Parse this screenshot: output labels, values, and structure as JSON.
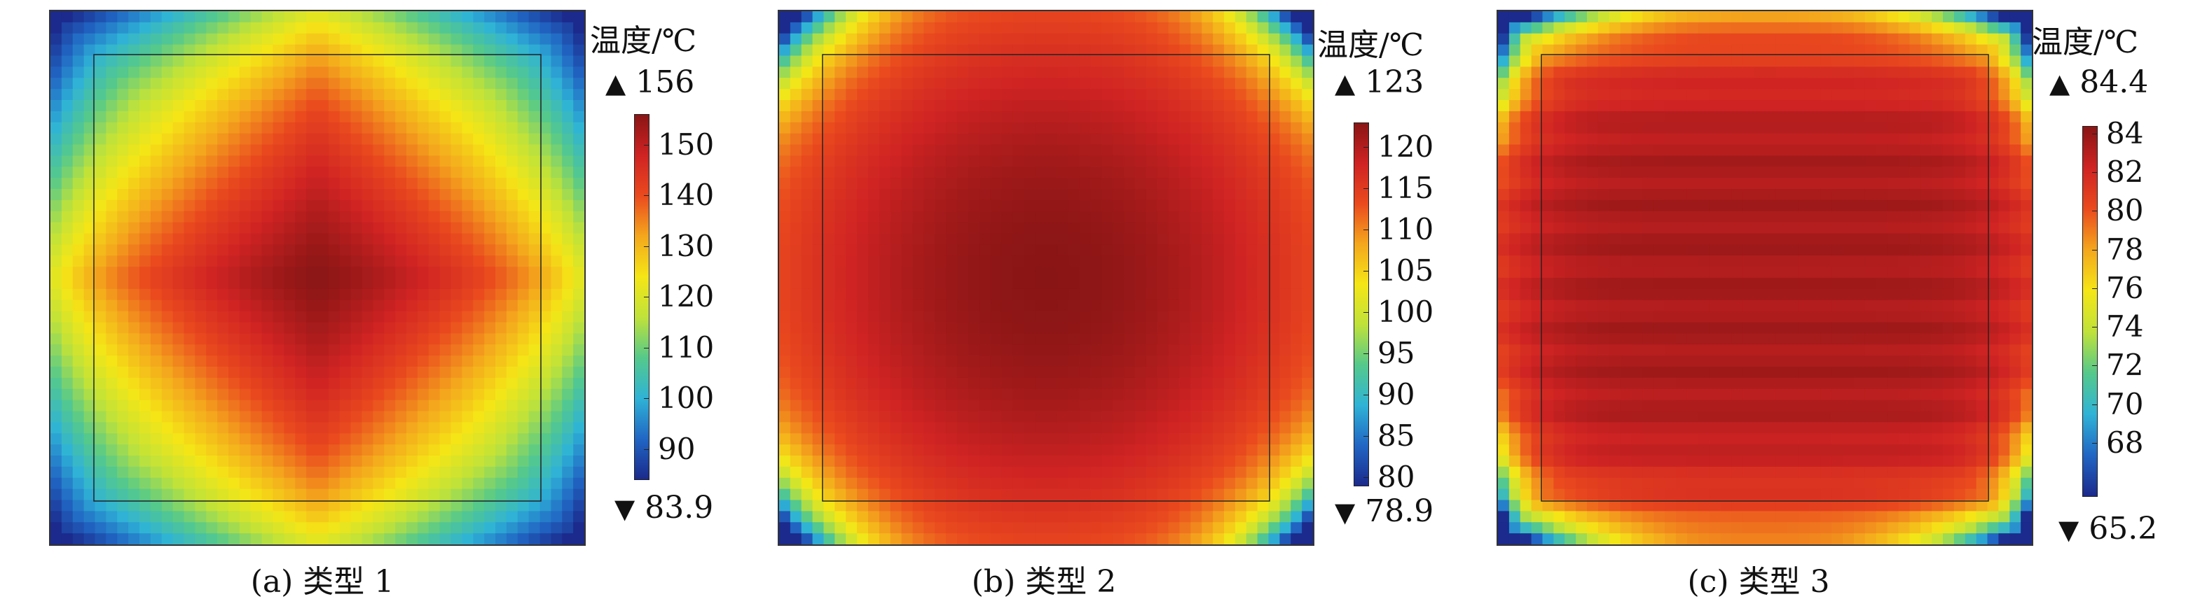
{
  "chart_data": [
    {
      "type": "heatmap",
      "caption": "(a) 类型 1",
      "colorbar": {
        "title": "温度/℃",
        "max_marker": "156",
        "min_marker": "83.9",
        "min": 83.9,
        "max": 156,
        "ticks": [
          90,
          100,
          110,
          120,
          130,
          140,
          150
        ]
      },
      "field": {
        "center": 156,
        "corner": 83.9,
        "pattern": "diamond"
      }
    },
    {
      "type": "heatmap",
      "caption": "(b) 类型 2",
      "colorbar": {
        "title": "温度/℃",
        "max_marker": "123",
        "min_marker": "78.9",
        "min": 78.9,
        "max": 123,
        "ticks": [
          80,
          85,
          90,
          95,
          100,
          105,
          110,
          115,
          120
        ]
      },
      "field": {
        "center": 123,
        "corner": 78.9,
        "pattern": "circle"
      }
    },
    {
      "type": "heatmap",
      "caption": "(c) 类型 3",
      "colorbar": {
        "title": "温度/℃",
        "max_marker": "84.4",
        "min_marker": "65.2",
        "min": 65.2,
        "max": 84.4,
        "ticks": [
          68,
          70,
          72,
          74,
          76,
          78,
          80,
          82,
          84
        ]
      },
      "field": {
        "center": 84.4,
        "corner": 65.2,
        "pattern": "horizontal"
      }
    }
  ],
  "colormap": [
    "#1b2a8c",
    "#2166c4",
    "#2fb3d6",
    "#55c98b",
    "#bfe23a",
    "#f5e616",
    "#f4a71d",
    "#ea4a1e",
    "#cf2323",
    "#8a1515"
  ]
}
